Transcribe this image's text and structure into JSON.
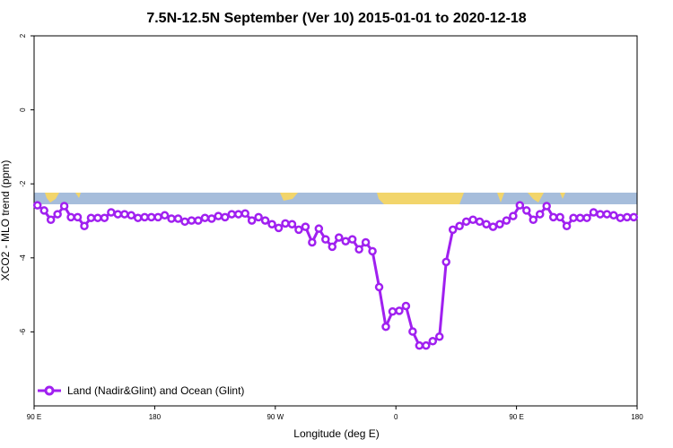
{
  "chart_data": {
    "type": "line",
    "title": "7.5N-12.5N September (Ver 10)   2015-01-01 to 2020-12-18",
    "x_label": "Longitude (deg E)",
    "y_label": "XCO2 - MLO trend (ppm)",
    "xlim": [
      90,
      540
    ],
    "ylim": [
      -8,
      2
    ],
    "xticks": [
      {
        "value": 90,
        "label": "90 E"
      },
      180,
      {
        "value": 270,
        "label": "90 W"
      },
      {
        "value": 360,
        "label": "0"
      },
      {
        "value": 450,
        "label": "90 E"
      },
      {
        "value": 540,
        "label": "180"
      }
    ],
    "yticks": [
      2,
      0,
      -2,
      -4,
      -6
    ],
    "legend": "bottom-left",
    "x": [
      92.5,
      97.5,
      102.5,
      107.5,
      112.5,
      117.5,
      122.5,
      127.5,
      132.5,
      137.5,
      142.5,
      147.5,
      152.5,
      157.5,
      162.5,
      167.5,
      172.5,
      177.5,
      182.5,
      187.5,
      192.5,
      197.5,
      202.5,
      207.5,
      212.5,
      217.5,
      222.5,
      227.5,
      232.5,
      237.5,
      242.5,
      247.5,
      252.5,
      257.5,
      262.5,
      267.5,
      272.5,
      277.5,
      282.5,
      287.5,
      292.5,
      297.5,
      302.5,
      307.5,
      312.5,
      317.5,
      322.5,
      327.5,
      332.5,
      337.5,
      342.5,
      347.5,
      352.5,
      357.5,
      362.5,
      367.5,
      372.5,
      377.5,
      382.5,
      387.5,
      392.5,
      397.5,
      402.5,
      407.5,
      412.5,
      417.5,
      422.5,
      427.5,
      432.5,
      437.5,
      442.5,
      447.5,
      452.5,
      457.5,
      462.5,
      467.5,
      472.5,
      477.5,
      482.5,
      487.5,
      492.5,
      497.5,
      502.5,
      507.5,
      512.5,
      517.5,
      522.5,
      527.5,
      532.5,
      537.5
    ],
    "series": [
      {
        "name": "Land (Nadir&Glint) and Ocean (Glint)",
        "color": "#a020f0",
        "values": [
          -2.58,
          -2.72,
          -2.97,
          -2.82,
          -2.6,
          -2.9,
          -2.9,
          -3.14,
          -2.92,
          -2.92,
          -2.92,
          -2.77,
          -2.82,
          -2.82,
          -2.85,
          -2.92,
          -2.9,
          -2.9,
          -2.9,
          -2.85,
          -2.94,
          -2.94,
          -3.02,
          -2.99,
          -2.99,
          -2.92,
          -2.94,
          -2.87,
          -2.9,
          -2.82,
          -2.82,
          -2.8,
          -2.99,
          -2.9,
          -2.99,
          -3.09,
          -3.19,
          -3.07,
          -3.09,
          -3.24,
          -3.16,
          -3.58,
          -3.21,
          -3.5,
          -3.7,
          -3.45,
          -3.55,
          -3.5,
          -3.77,
          -3.58,
          -3.82,
          -4.79,
          -5.86,
          -5.45,
          -5.43,
          -5.3,
          -5.99,
          -6.37,
          -6.37,
          -6.25,
          -6.13,
          -4.11,
          -3.24,
          -3.14,
          -3.02,
          -2.97,
          -3.02,
          -3.09,
          -3.16,
          -3.09,
          -2.99,
          -2.87,
          -2.58,
          -2.72,
          -2.97,
          -2.82,
          -2.6,
          -2.9,
          -2.9,
          -3.14,
          -2.92,
          -2.92,
          -2.92,
          -2.77,
          -2.82,
          -2.82,
          -2.85,
          -2.92,
          -2.9,
          -2.9
        ]
      }
    ]
  }
}
